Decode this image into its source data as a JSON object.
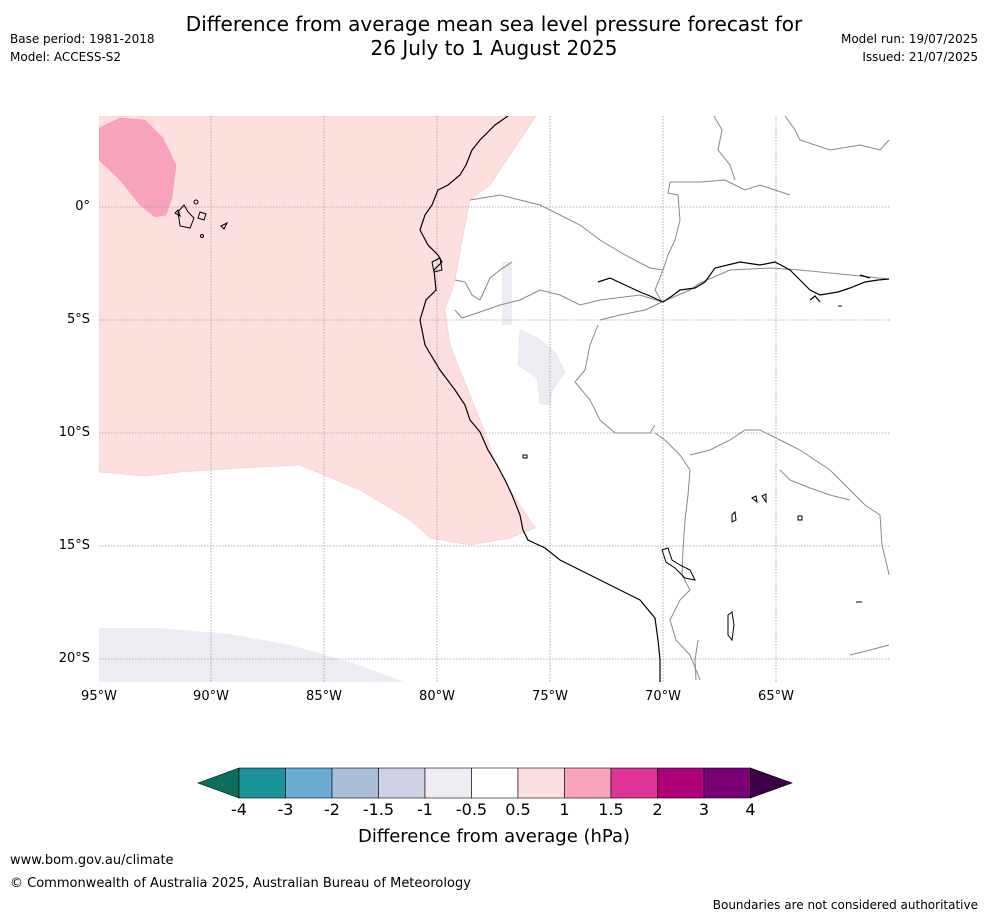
{
  "title": {
    "line1": "Difference from average mean sea level pressure forecast for",
    "line2": "26 July to 1 August 2025"
  },
  "meta_left": {
    "base_period": "Base period: 1981-2018",
    "model": "Model: ACCESS-S2"
  },
  "meta_right": {
    "model_run": "Model run: 19/07/2025",
    "issued": "Issued: 21/07/2025"
  },
  "map": {
    "lat_labels": [
      "0°",
      "5°S",
      "10°S",
      "15°S",
      "20°S"
    ],
    "lon_labels": [
      "95°W",
      "90°W",
      "85°W",
      "80°W",
      "75°W",
      "70°W",
      "65°W"
    ],
    "colors": {
      "weak_positive": "#fde0de",
      "moderate_positive": "#f9a2bb",
      "weak_negative": "#efebf2",
      "coast": "#000000",
      "borders": "#888888",
      "grid": "#999999"
    }
  },
  "colorbar": {
    "label": "Difference from average (hPa)",
    "ticks": [
      "-4",
      "-3",
      "-2",
      "-1.5",
      "-1",
      "-0.5",
      "0.5",
      "1",
      "1.5",
      "2",
      "3",
      "4"
    ],
    "colors": [
      "#0e6e5e",
      "#1b9499",
      "#6aacd3",
      "#a9bcda",
      "#cfd1e5",
      "#efebf2",
      "#ffffff",
      "#fde0de",
      "#f9a2bb",
      "#de3499",
      "#ae0179",
      "#7b0077",
      "#3d0048"
    ]
  },
  "footer": {
    "url": "www.bom.gov.au/climate",
    "copyright": "© Commonwealth of Australia 2025, Australian Bureau of Meteorology",
    "disclaimer": "Boundaries are not considered authoritative"
  }
}
